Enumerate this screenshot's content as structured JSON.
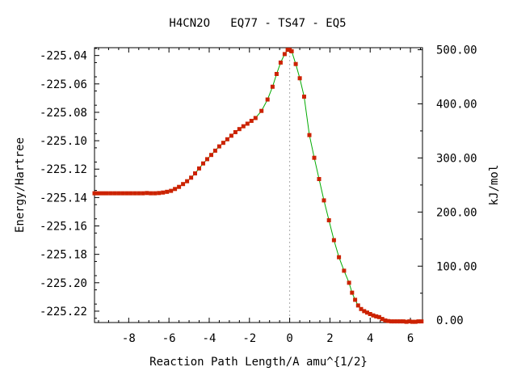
{
  "chart_data": {
    "type": "line",
    "title": "H4CN2O   EQ77 - TS47 - EQ5",
    "xlabel": "Reaction Path Length/A amu^{1/2}",
    "ylabel": "Energy/Hartree",
    "y2label": "kJ/mol",
    "xlim": [
      -9.7,
      6.6
    ],
    "ylim": [
      -225.228,
      -225.0345
    ],
    "y2lim": [
      -4.2,
      503.8
    ],
    "x_ticks": [
      -8,
      -6,
      -4,
      -2,
      0,
      2,
      4,
      6
    ],
    "x_tick_labels": [
      "-8",
      "-6",
      "-4",
      "-2",
      "0",
      "2",
      "4",
      "6"
    ],
    "y_ticks": [
      -225.04,
      -225.06,
      -225.08,
      -225.1,
      -225.12,
      -225.14,
      -225.16,
      -225.18,
      -225.2,
      -225.22
    ],
    "y_tick_labels": [
      "-225.04",
      "-225.06",
      "-225.08",
      "-225.10",
      "-225.12",
      "-225.14",
      "-225.16",
      "-225.18",
      "-225.20",
      "-225.22"
    ],
    "y2_ticks": [
      0,
      100,
      200,
      300,
      400,
      500
    ],
    "y2_tick_labels": [
      "0.00",
      "100.00",
      "200.00",
      "300.00",
      "400.00",
      "500.00"
    ],
    "grid": false,
    "ts_marker_x": 0,
    "line_color": "#00aa00",
    "point_color": "#cc2200",
    "marker_line_color": "#aaaaaa",
    "series": [
      {
        "x": [
          -9.7,
          -9.5,
          -9.3,
          -9.1,
          -8.9,
          -8.7,
          -8.5,
          -8.3,
          -8.1,
          -7.9,
          -7.7,
          -7.5,
          -7.3,
          -7.1,
          -6.9,
          -6.7,
          -6.5,
          -6.3,
          -6.1,
          -5.9,
          -5.7,
          -5.5,
          -5.3,
          -5.1,
          -4.9,
          -4.7,
          -4.5,
          -4.3,
          -4.1,
          -3.9,
          -3.7,
          -3.5,
          -3.3,
          -3.1,
          -2.9,
          -2.7,
          -2.5,
          -2.3,
          -2.1,
          -1.9,
          -1.7,
          -1.4,
          -1.1,
          -0.85,
          -0.65,
          -0.45,
          -0.25,
          -0.1,
          0.0,
          0.1,
          0.3,
          0.5,
          0.72,
          0.98,
          1.22,
          1.46,
          1.7,
          1.95,
          2.2,
          2.45,
          2.7,
          2.95,
          3.1,
          3.25,
          3.4,
          3.55,
          3.7,
          3.85,
          4.0,
          4.15,
          4.3,
          4.45,
          4.6,
          4.75,
          4.9,
          5.05,
          5.2,
          5.35,
          5.5,
          5.65,
          5.8,
          5.95,
          6.1,
          6.25,
          6.4,
          6.55
        ],
        "y": [
          -225.137,
          -225.137,
          -225.137,
          -225.137,
          -225.137,
          -225.137,
          -225.137,
          -225.137,
          -225.137,
          -225.137,
          -225.137,
          -225.137,
          -225.137,
          -225.1368,
          -225.137,
          -225.137,
          -225.1368,
          -225.1365,
          -225.136,
          -225.1353,
          -225.134,
          -225.1325,
          -225.1305,
          -225.1285,
          -225.126,
          -225.123,
          -225.1195,
          -225.116,
          -225.113,
          -225.11,
          -225.107,
          -225.104,
          -225.1015,
          -225.099,
          -225.0965,
          -225.094,
          -225.0918,
          -225.0898,
          -225.088,
          -225.086,
          -225.084,
          -225.079,
          -225.071,
          -225.062,
          -225.053,
          -225.045,
          -225.039,
          -225.036,
          -225.036,
          -225.037,
          -225.046,
          -225.056,
          -225.069,
          -225.096,
          -225.112,
          -225.127,
          -225.142,
          -225.156,
          -225.17,
          -225.182,
          -225.1915,
          -225.2,
          -225.207,
          -225.212,
          -225.216,
          -225.2185,
          -225.22,
          -225.221,
          -225.222,
          -225.223,
          -225.2237,
          -225.2242,
          -225.2255,
          -225.2265,
          -225.227,
          -225.2272,
          -225.2272,
          -225.2272,
          -225.2272,
          -225.2272,
          -225.2275,
          -225.2272,
          -225.2275,
          -225.2275,
          -225.2272,
          -225.2272
        ]
      }
    ]
  }
}
